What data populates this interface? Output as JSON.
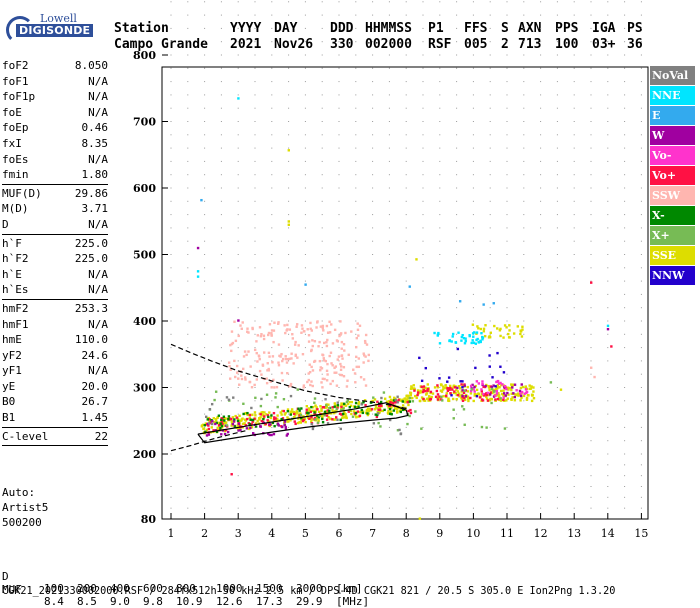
{
  "logo": {
    "line1": "Lowell",
    "line2": "DIGISONDE"
  },
  "header": {
    "labels": [
      "Station",
      "YYYY",
      "DAY",
      "DDD",
      "HHMMSS",
      "P1",
      "FFS",
      "S",
      "AXN",
      "PPS",
      "IGA",
      "PS"
    ],
    "values": [
      "Campo Grande",
      "2021",
      "Nov26",
      "330",
      "002000",
      "RSF",
      "005",
      "2",
      "713",
      "100",
      "03+",
      "36"
    ]
  },
  "params": [
    {
      "k": "foF2",
      "v": "8.050"
    },
    {
      "k": "foF1",
      "v": "N/A"
    },
    {
      "k": "foF1p",
      "v": "N/A"
    },
    {
      "k": "foE",
      "v": "N/A"
    },
    {
      "k": "foEp",
      "v": "0.46"
    },
    {
      "k": "fxI",
      "v": "8.35"
    },
    {
      "k": "foEs",
      "v": "N/A"
    },
    {
      "k": "fmin",
      "v": "1.80",
      "sep": true
    },
    {
      "k": "MUF(D)",
      "v": "29.86"
    },
    {
      "k": "M(D)",
      "v": "3.71"
    },
    {
      "k": "D",
      "v": "N/A",
      "sep": true
    },
    {
      "k": "h`F",
      "v": "225.0"
    },
    {
      "k": "h`F2",
      "v": "225.0"
    },
    {
      "k": "h`E",
      "v": "N/A"
    },
    {
      "k": "h`Es",
      "v": "N/A",
      "sep": true
    },
    {
      "k": "hmF2",
      "v": "253.3"
    },
    {
      "k": "hmF1",
      "v": "N/A"
    },
    {
      "k": "hmE",
      "v": "110.0"
    },
    {
      "k": "yF2",
      "v": "24.6"
    },
    {
      "k": "yF1",
      "v": "N/A"
    },
    {
      "k": "yE",
      "v": "20.0"
    },
    {
      "k": "B0",
      "v": "26.7"
    },
    {
      "k": "B1",
      "v": "1.45",
      "sep": true
    },
    {
      "k": "C-level",
      "v": "22",
      "sep": true
    }
  ],
  "auto": [
    "Auto:",
    "Artist5",
    "500200"
  ],
  "legend": [
    {
      "label": "NoVal",
      "color": "#808080"
    },
    {
      "label": "NNE",
      "color": "#00e5ff"
    },
    {
      "label": "E",
      "color": "#33aaee"
    },
    {
      "label": "W",
      "color": "#a000a0"
    },
    {
      "label": "Vo-",
      "color": "#ff33cc"
    },
    {
      "label": "Vo+",
      "color": "#ff1144"
    },
    {
      "label": "SSW",
      "color": "#ffb6b0"
    },
    {
      "label": "X-",
      "color": "#008800"
    },
    {
      "label": "X+",
      "color": "#77bb55"
    },
    {
      "label": "SSE",
      "color": "#dddd00"
    },
    {
      "label": "NNW",
      "color": "#2200cc"
    }
  ],
  "chart_data": {
    "type": "scatter",
    "xlim": [
      1,
      15
    ],
    "ylim": [
      80,
      900
    ],
    "xticks": [
      1,
      2,
      3,
      4,
      5,
      6,
      7,
      8,
      9,
      10,
      11,
      12,
      13,
      14,
      15
    ],
    "yticks": [
      80,
      200,
      300,
      400,
      500,
      600,
      700,
      800,
      900
    ],
    "grid": true,
    "clusters": [
      {
        "color": "#ffb6b0",
        "x": [
          2.7,
          6.9
        ],
        "y": [
          300,
          400
        ],
        "n": 260
      },
      {
        "color": "#dddd00",
        "x": [
          1.9,
          8.2
        ],
        "y": [
          230,
          290
        ],
        "n": 360,
        "slope": true
      },
      {
        "color": "#dddd00",
        "x": [
          8.0,
          11.8
        ],
        "y": [
          280,
          305
        ],
        "n": 220
      },
      {
        "color": "#dddd00",
        "x": [
          9.9,
          11.5
        ],
        "y": [
          375,
          395
        ],
        "n": 35
      },
      {
        "color": "#ff1144",
        "x": [
          2.0,
          8.2
        ],
        "y": [
          230,
          285
        ],
        "n": 110,
        "slope": true
      },
      {
        "color": "#ff1144",
        "x": [
          8.2,
          11.0
        ],
        "y": [
          280,
          305
        ],
        "n": 60
      },
      {
        "color": "#008800",
        "x": [
          2.0,
          8.2
        ],
        "y": [
          232,
          285
        ],
        "n": 80,
        "slope": true
      },
      {
        "color": "#a000a0",
        "x": [
          1.9,
          4.5
        ],
        "y": [
          228,
          250
        ],
        "n": 40
      },
      {
        "color": "#a000a0",
        "x": [
          9.5,
          11.5
        ],
        "y": [
          285,
          305
        ],
        "n": 25
      },
      {
        "color": "#ff33cc",
        "x": [
          9.8,
          11.6
        ],
        "y": [
          285,
          310
        ],
        "n": 30
      },
      {
        "color": "#00e5ff",
        "x": [
          8.8,
          10.3
        ],
        "y": [
          365,
          385
        ],
        "n": 40
      },
      {
        "color": "#2200cc",
        "x": [
          8.3,
          11.0
        ],
        "y": [
          280,
          360
        ],
        "n": 20
      },
      {
        "color": "#77bb55",
        "x": [
          2.0,
          11.0
        ],
        "y": [
          235,
          300
        ],
        "n": 60
      },
      {
        "color": "#808080",
        "x": [
          2.0,
          8.0
        ],
        "y": [
          230,
          290
        ],
        "n": 30
      }
    ],
    "points": [
      {
        "x": 1.9,
        "y": 582,
        "color": "#33aaee"
      },
      {
        "x": 1.8,
        "y": 510,
        "color": "#a000a0"
      },
      {
        "x": 1.8,
        "y": 475,
        "color": "#00e5ff"
      },
      {
        "x": 1.8,
        "y": 467,
        "color": "#00e5ff"
      },
      {
        "x": 3.0,
        "y": 735,
        "color": "#00e5ff"
      },
      {
        "x": 4.5,
        "y": 657,
        "color": "#dddd00"
      },
      {
        "x": 4.5,
        "y": 550,
        "color": "#dddd00"
      },
      {
        "x": 4.5,
        "y": 545,
        "color": "#dddd00"
      },
      {
        "x": 5.0,
        "y": 455,
        "color": "#33aaee"
      },
      {
        "x": 8.1,
        "y": 452,
        "color": "#33aaee"
      },
      {
        "x": 8.3,
        "y": 493,
        "color": "#dddd00"
      },
      {
        "x": 9.6,
        "y": 430,
        "color": "#33aaee"
      },
      {
        "x": 10.3,
        "y": 425,
        "color": "#33aaee"
      },
      {
        "x": 10.6,
        "y": 427,
        "color": "#33aaee"
      },
      {
        "x": 13.5,
        "y": 458,
        "color": "#ff1144"
      },
      {
        "x": 14.0,
        "y": 388,
        "color": "#a000a0"
      },
      {
        "x": 14.0,
        "y": 393,
        "color": "#00e5ff"
      },
      {
        "x": 14.1,
        "y": 362,
        "color": "#ff1144"
      },
      {
        "x": 13.5,
        "y": 330,
        "color": "#ffb6b0"
      },
      {
        "x": 13.6,
        "y": 316,
        "color": "#ffb6b0"
      },
      {
        "x": 12.6,
        "y": 297,
        "color": "#dddd00"
      },
      {
        "x": 12.3,
        "y": 308,
        "color": "#77bb55"
      },
      {
        "x": 2.8,
        "y": 163,
        "color": "#ff1144"
      },
      {
        "x": 8.4,
        "y": 81,
        "color": "#dddd00"
      },
      {
        "x": 3.0,
        "y": 401,
        "color": "#a000a0"
      }
    ],
    "curves": [
      {
        "style": "dashed",
        "x": [
          1.0,
          1.6,
          2.2,
          3.0,
          4.0,
          5.0,
          6.0,
          7.0,
          7.6,
          8.05
        ],
        "y": [
          365,
          352,
          340,
          325,
          310,
          295,
          285,
          278,
          273,
          268
        ]
      },
      {
        "style": "dashed",
        "x": [
          1.0,
          1.6,
          2.2,
          2.8,
          3.3
        ],
        "y": [
          205,
          213,
          222,
          230,
          236
        ]
      },
      {
        "style": "solid",
        "x": [
          1.8,
          2.5,
          3.5,
          4.5,
          5.5,
          6.5,
          7.4,
          8.0,
          8.05,
          7.7,
          7.0,
          6.0,
          5.0,
          4.0,
          3.0,
          2.0,
          1.8
        ],
        "y": [
          230,
          236,
          244,
          252,
          260,
          268,
          277,
          266,
          258,
          254,
          251,
          246,
          240,
          233,
          225,
          217,
          230
        ]
      }
    ]
  },
  "footer": {
    "d_label": "D",
    "d_values": [
      "100",
      "200",
      "400",
      "600",
      "800",
      "1000",
      "1500",
      "3000",
      "[km]"
    ],
    "muf_label": "MUF",
    "muf_values": [
      "8.4",
      "8.5",
      "9.0",
      "9.8",
      "10.9",
      "12.6",
      "17.3",
      "29.9",
      "[MHz]"
    ],
    "info": "CGK21_2021330002000.RSF / 284fx512h 50 kHz 2.5 km / DPS-4D CGK21 821 / 20.5 S 305.0 E Ion2Png 1.3.20"
  }
}
